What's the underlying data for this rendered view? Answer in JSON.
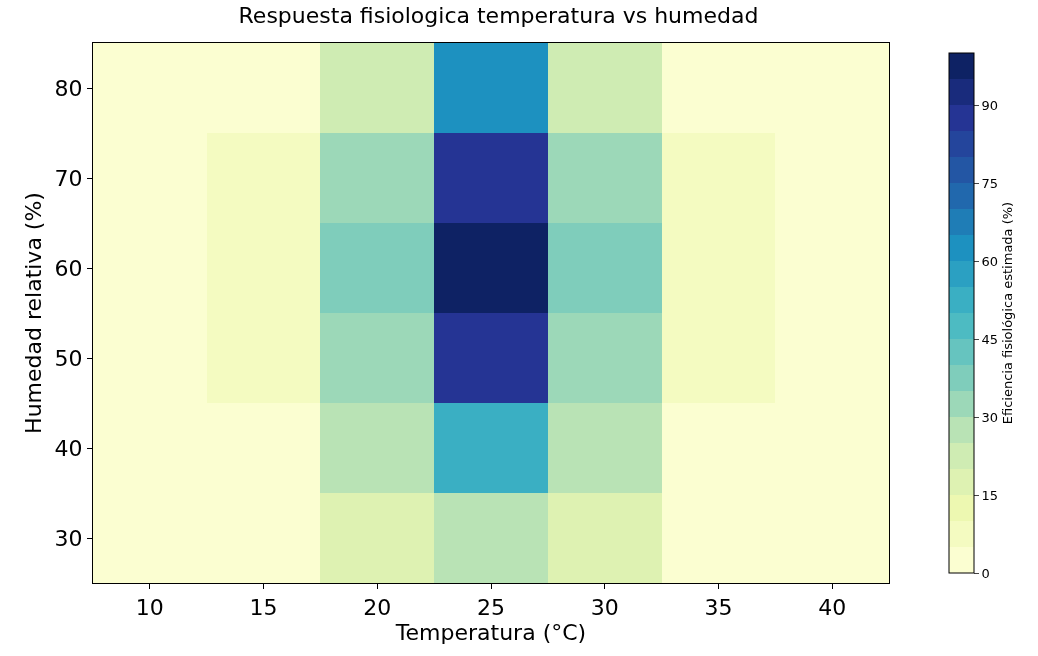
{
  "chart_data": {
    "type": "heatmap",
    "title": "Respuesta fisiologica temperatura vs humedad",
    "xlabel": "Temperatura (°C)",
    "ylabel": "Humedad relativa (%)",
    "clabel": "Eficiencia fisiológica estimada (%)",
    "categories": [
      "10",
      "15",
      "20",
      "25",
      "30",
      "35",
      "40"
    ],
    "y_categories": [
      "80",
      "70",
      "60",
      "50",
      "40",
      "30"
    ],
    "cells": [
      [
        1,
        3,
        22,
        60,
        22,
        3,
        1
      ],
      [
        1,
        5,
        33,
        85,
        33,
        5,
        1
      ],
      [
        1,
        5,
        37,
        100,
        37,
        5,
        1
      ],
      [
        1,
        5,
        33,
        85,
        33,
        5,
        1
      ],
      [
        1,
        4,
        28,
        52,
        28,
        4,
        1
      ],
      [
        1,
        2,
        18,
        28,
        18,
        2,
        1
      ]
    ],
    "clim": [
      0,
      100
    ],
    "cticks": [
      0,
      15,
      30,
      45,
      60,
      75,
      90
    ]
  }
}
